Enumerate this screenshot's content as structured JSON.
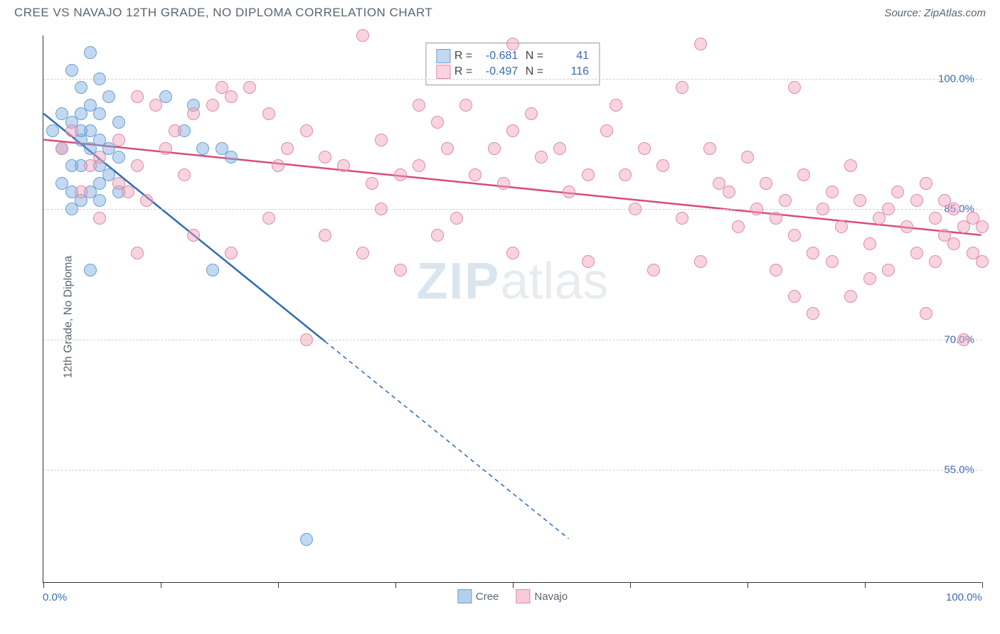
{
  "header": {
    "title": "CREE VS NAVAJO 12TH GRADE, NO DIPLOMA CORRELATION CHART",
    "source": "Source: ZipAtlas.com"
  },
  "chart": {
    "type": "scatter",
    "ylabel": "12th Grade, No Diploma",
    "watermark_zip": "ZIP",
    "watermark_atlas": "atlas",
    "xlim": [
      0,
      100
    ],
    "ylim": [
      42,
      105
    ],
    "yticks": [
      55.0,
      70.0,
      85.0,
      100.0
    ],
    "ytick_labels": [
      "55.0%",
      "70.0%",
      "85.0%",
      "100.0%"
    ],
    "xticks": [
      0,
      12.5,
      25,
      37.5,
      50,
      62.5,
      75,
      87.5,
      100
    ],
    "xaxis_start": "0.0%",
    "xaxis_end": "100.0%",
    "background_color": "#ffffff",
    "grid_color": "#d0d0d0",
    "marker_radius": 9,
    "series": [
      {
        "name": "Cree",
        "fill": "rgba(120,170,225,0.45)",
        "stroke": "#6a9fd4",
        "line_color": "#2d6bb5",
        "R": "-0.681",
        "N": "41",
        "trend": {
          "x1": 0,
          "y1": 96,
          "x2": 30,
          "y2": 70,
          "x1_full": 0,
          "y1_full": 96,
          "x2_full": 56,
          "y2_full": 47,
          "solid_until_x": 30
        },
        "points": [
          [
            1,
            94
          ],
          [
            2,
            92
          ],
          [
            3,
            95
          ],
          [
            4,
            93
          ],
          [
            3,
            101
          ],
          [
            5,
            103
          ],
          [
            6,
            100
          ],
          [
            5,
            97
          ],
          [
            4,
            90
          ],
          [
            2,
            88
          ],
          [
            6,
            93
          ],
          [
            4,
            96
          ],
          [
            7,
            98
          ],
          [
            8,
            95
          ],
          [
            6,
            90
          ],
          [
            5,
            87
          ],
          [
            3,
            85
          ],
          [
            7,
            92
          ],
          [
            5,
            94
          ],
          [
            13,
            98
          ],
          [
            15,
            94
          ],
          [
            16,
            97
          ],
          [
            17,
            92
          ],
          [
            19,
            92
          ],
          [
            20,
            91
          ],
          [
            5,
            78
          ],
          [
            6,
            88
          ],
          [
            4,
            86
          ],
          [
            8,
            87
          ],
          [
            3,
            87
          ],
          [
            18,
            78
          ],
          [
            28,
            47
          ],
          [
            2,
            96
          ],
          [
            4,
            99
          ],
          [
            6,
            96
          ],
          [
            3,
            90
          ],
          [
            7,
            89
          ],
          [
            5,
            92
          ],
          [
            8,
            91
          ],
          [
            4,
            94
          ],
          [
            6,
            86
          ]
        ]
      },
      {
        "name": "Navajo",
        "fill": "rgba(240,160,185,0.45)",
        "stroke": "#e08aa8",
        "line_color": "#d84c7d",
        "R": "-0.497",
        "N": "116",
        "trend": {
          "x1": 0,
          "y1": 93,
          "x2": 100,
          "y2": 82
        },
        "points": [
          [
            2,
            92
          ],
          [
            3,
            94
          ],
          [
            5,
            90
          ],
          [
            6,
            91
          ],
          [
            8,
            93
          ],
          [
            10,
            98
          ],
          [
            10,
            90
          ],
          [
            12,
            97
          ],
          [
            13,
            92
          ],
          [
            14,
            94
          ],
          [
            15,
            89
          ],
          [
            16,
            96
          ],
          [
            18,
            97
          ],
          [
            19,
            99
          ],
          [
            20,
            98
          ],
          [
            22,
            99
          ],
          [
            24,
            96
          ],
          [
            25,
            90
          ],
          [
            26,
            92
          ],
          [
            28,
            94
          ],
          [
            30,
            91
          ],
          [
            32,
            90
          ],
          [
            34,
            105
          ],
          [
            35,
            88
          ],
          [
            36,
            93
          ],
          [
            38,
            89
          ],
          [
            40,
            97
          ],
          [
            40,
            90
          ],
          [
            42,
            95
          ],
          [
            43,
            92
          ],
          [
            45,
            97
          ],
          [
            46,
            89
          ],
          [
            48,
            92
          ],
          [
            49,
            88
          ],
          [
            50,
            104
          ],
          [
            50,
            94
          ],
          [
            52,
            96
          ],
          [
            53,
            91
          ],
          [
            55,
            92
          ],
          [
            56,
            87
          ],
          [
            58,
            89
          ],
          [
            60,
            94
          ],
          [
            61,
            97
          ],
          [
            62,
            89
          ],
          [
            63,
            85
          ],
          [
            65,
            78
          ],
          [
            64,
            92
          ],
          [
            66,
            90
          ],
          [
            68,
            84
          ],
          [
            68,
            99
          ],
          [
            70,
            104
          ],
          [
            70,
            79
          ],
          [
            71,
            92
          ],
          [
            72,
            88
          ],
          [
            73,
            87
          ],
          [
            74,
            83
          ],
          [
            75,
            91
          ],
          [
            76,
            85
          ],
          [
            77,
            88
          ],
          [
            78,
            84
          ],
          [
            79,
            86
          ],
          [
            80,
            99
          ],
          [
            80,
            82
          ],
          [
            81,
            89
          ],
          [
            82,
            80
          ],
          [
            83,
            85
          ],
          [
            84,
            87
          ],
          [
            85,
            83
          ],
          [
            86,
            90
          ],
          [
            87,
            86
          ],
          [
            88,
            81
          ],
          [
            89,
            84
          ],
          [
            90,
            85
          ],
          [
            90,
            78
          ],
          [
            91,
            87
          ],
          [
            92,
            83
          ],
          [
            93,
            86
          ],
          [
            93,
            80
          ],
          [
            94,
            73
          ],
          [
            94,
            88
          ],
          [
            95,
            84
          ],
          [
            95,
            79
          ],
          [
            96,
            86
          ],
          [
            96,
            82
          ],
          [
            97,
            85
          ],
          [
            97,
            81
          ],
          [
            98,
            70
          ],
          [
            98,
            83
          ],
          [
            99,
            84
          ],
          [
            99,
            80
          ],
          [
            100,
            83
          ],
          [
            100,
            79
          ],
          [
            28,
            70
          ],
          [
            20,
            80
          ],
          [
            8,
            88
          ],
          [
            9,
            87
          ],
          [
            11,
            86
          ],
          [
            10,
            80
          ],
          [
            4,
            87
          ],
          [
            6,
            84
          ],
          [
            58,
            79
          ],
          [
            50,
            80
          ],
          [
            44,
            84
          ],
          [
            42,
            82
          ],
          [
            36,
            85
          ],
          [
            30,
            82
          ],
          [
            34,
            80
          ],
          [
            38,
            78
          ],
          [
            24,
            84
          ],
          [
            16,
            82
          ],
          [
            88,
            77
          ],
          [
            86,
            75
          ],
          [
            84,
            79
          ],
          [
            80,
            75
          ],
          [
            78,
            78
          ],
          [
            82,
            73
          ]
        ]
      }
    ],
    "bottom_legend": [
      {
        "label": "Cree",
        "fill": "rgba(120,170,225,0.55)",
        "stroke": "#6a9fd4"
      },
      {
        "label": "Navajo",
        "fill": "rgba(240,160,185,0.55)",
        "stroke": "#e08aa8"
      }
    ]
  }
}
